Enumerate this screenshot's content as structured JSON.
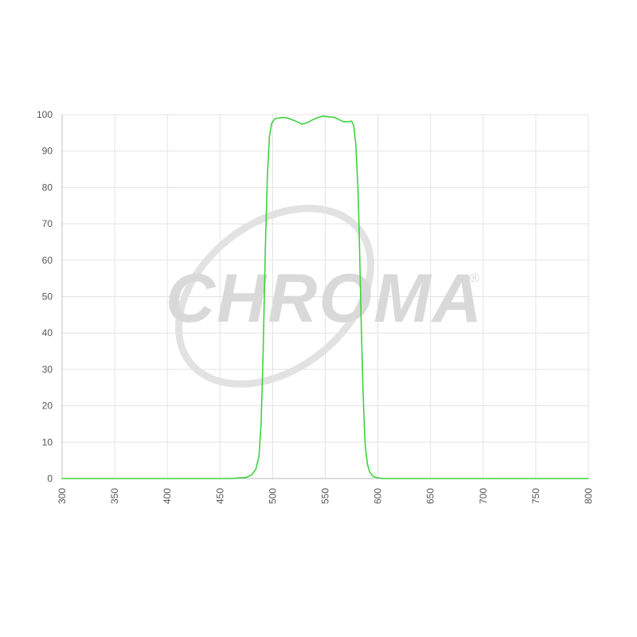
{
  "chart_data": {
    "type": "line",
    "title": "",
    "xlabel": "",
    "ylabel": "",
    "xlim": [
      300,
      800
    ],
    "ylim": [
      0,
      100
    ],
    "x_ticks": [
      300,
      350,
      400,
      450,
      500,
      550,
      600,
      650,
      700,
      750,
      800
    ],
    "y_ticks": [
      0,
      10,
      20,
      30,
      40,
      50,
      60,
      70,
      80,
      90,
      100
    ],
    "grid": true,
    "legend": "none",
    "series": [
      {
        "color": "#3fd23f",
        "x": [
          300,
          460,
          475,
          480,
          484,
          487,
          489,
          491,
          493,
          495,
          497,
          499,
          501,
          503,
          505,
          508,
          512,
          517,
          522,
          528,
          533,
          538,
          543,
          548,
          553,
          558,
          562,
          566,
          569,
          572,
          575,
          577,
          579,
          581,
          582,
          583,
          584,
          585,
          586,
          587,
          588,
          590,
          592,
          594,
          596,
          600,
          605,
          620,
          800
        ],
        "y": [
          0,
          0,
          0.3,
          1,
          2.5,
          6,
          15,
          35,
          62,
          83,
          94,
          97.5,
          98.5,
          99,
          99,
          99.2,
          99.2,
          98.8,
          98.2,
          97.4,
          97.8,
          98.6,
          99.2,
          99.6,
          99.4,
          99.3,
          98.8,
          98.2,
          98,
          98.1,
          98.2,
          97,
          92,
          80,
          70,
          58,
          45,
          33,
          23,
          15,
          9,
          4,
          2,
          1,
          0.5,
          0.2,
          0,
          0,
          0
        ]
      }
    ]
  },
  "watermark": {
    "text": "CHROMA",
    "registered_mark": "®"
  }
}
